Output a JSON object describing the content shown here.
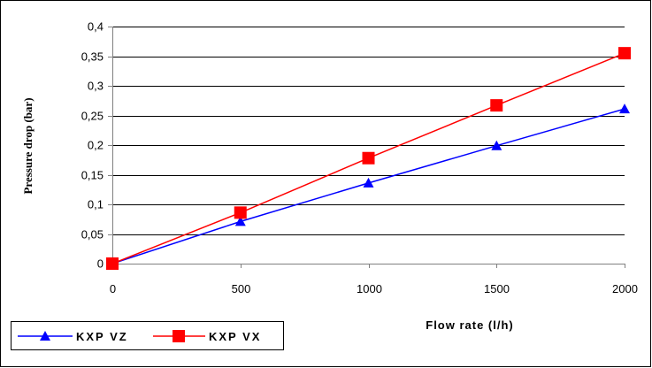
{
  "chart_data": {
    "type": "line",
    "xlabel": "Flow rate (l/h)",
    "ylabel": "Pressure drop (bar)",
    "x": [
      0,
      500,
      1000,
      1500,
      2000
    ],
    "x_ticks": [
      "0",
      "500",
      "1000",
      "1500",
      "2000"
    ],
    "xlim": [
      0,
      2000
    ],
    "ylim": [
      0,
      0.4
    ],
    "y_ticks": [
      "0",
      "0,05",
      "0,1",
      "0,15",
      "0,2",
      "0,25",
      "0,3",
      "0,35",
      "0,4"
    ],
    "grid": true,
    "legend_position": "bottom-left",
    "series": [
      {
        "name": "KXP VZ",
        "values": [
          0,
          0.071,
          0.136,
          0.199,
          0.261
        ],
        "color": "#0000ff",
        "marker": "triangle"
      },
      {
        "name": "KXP VX",
        "values": [
          0,
          0.086,
          0.178,
          0.267,
          0.355
        ],
        "color": "#ff0000",
        "marker": "square"
      }
    ]
  }
}
